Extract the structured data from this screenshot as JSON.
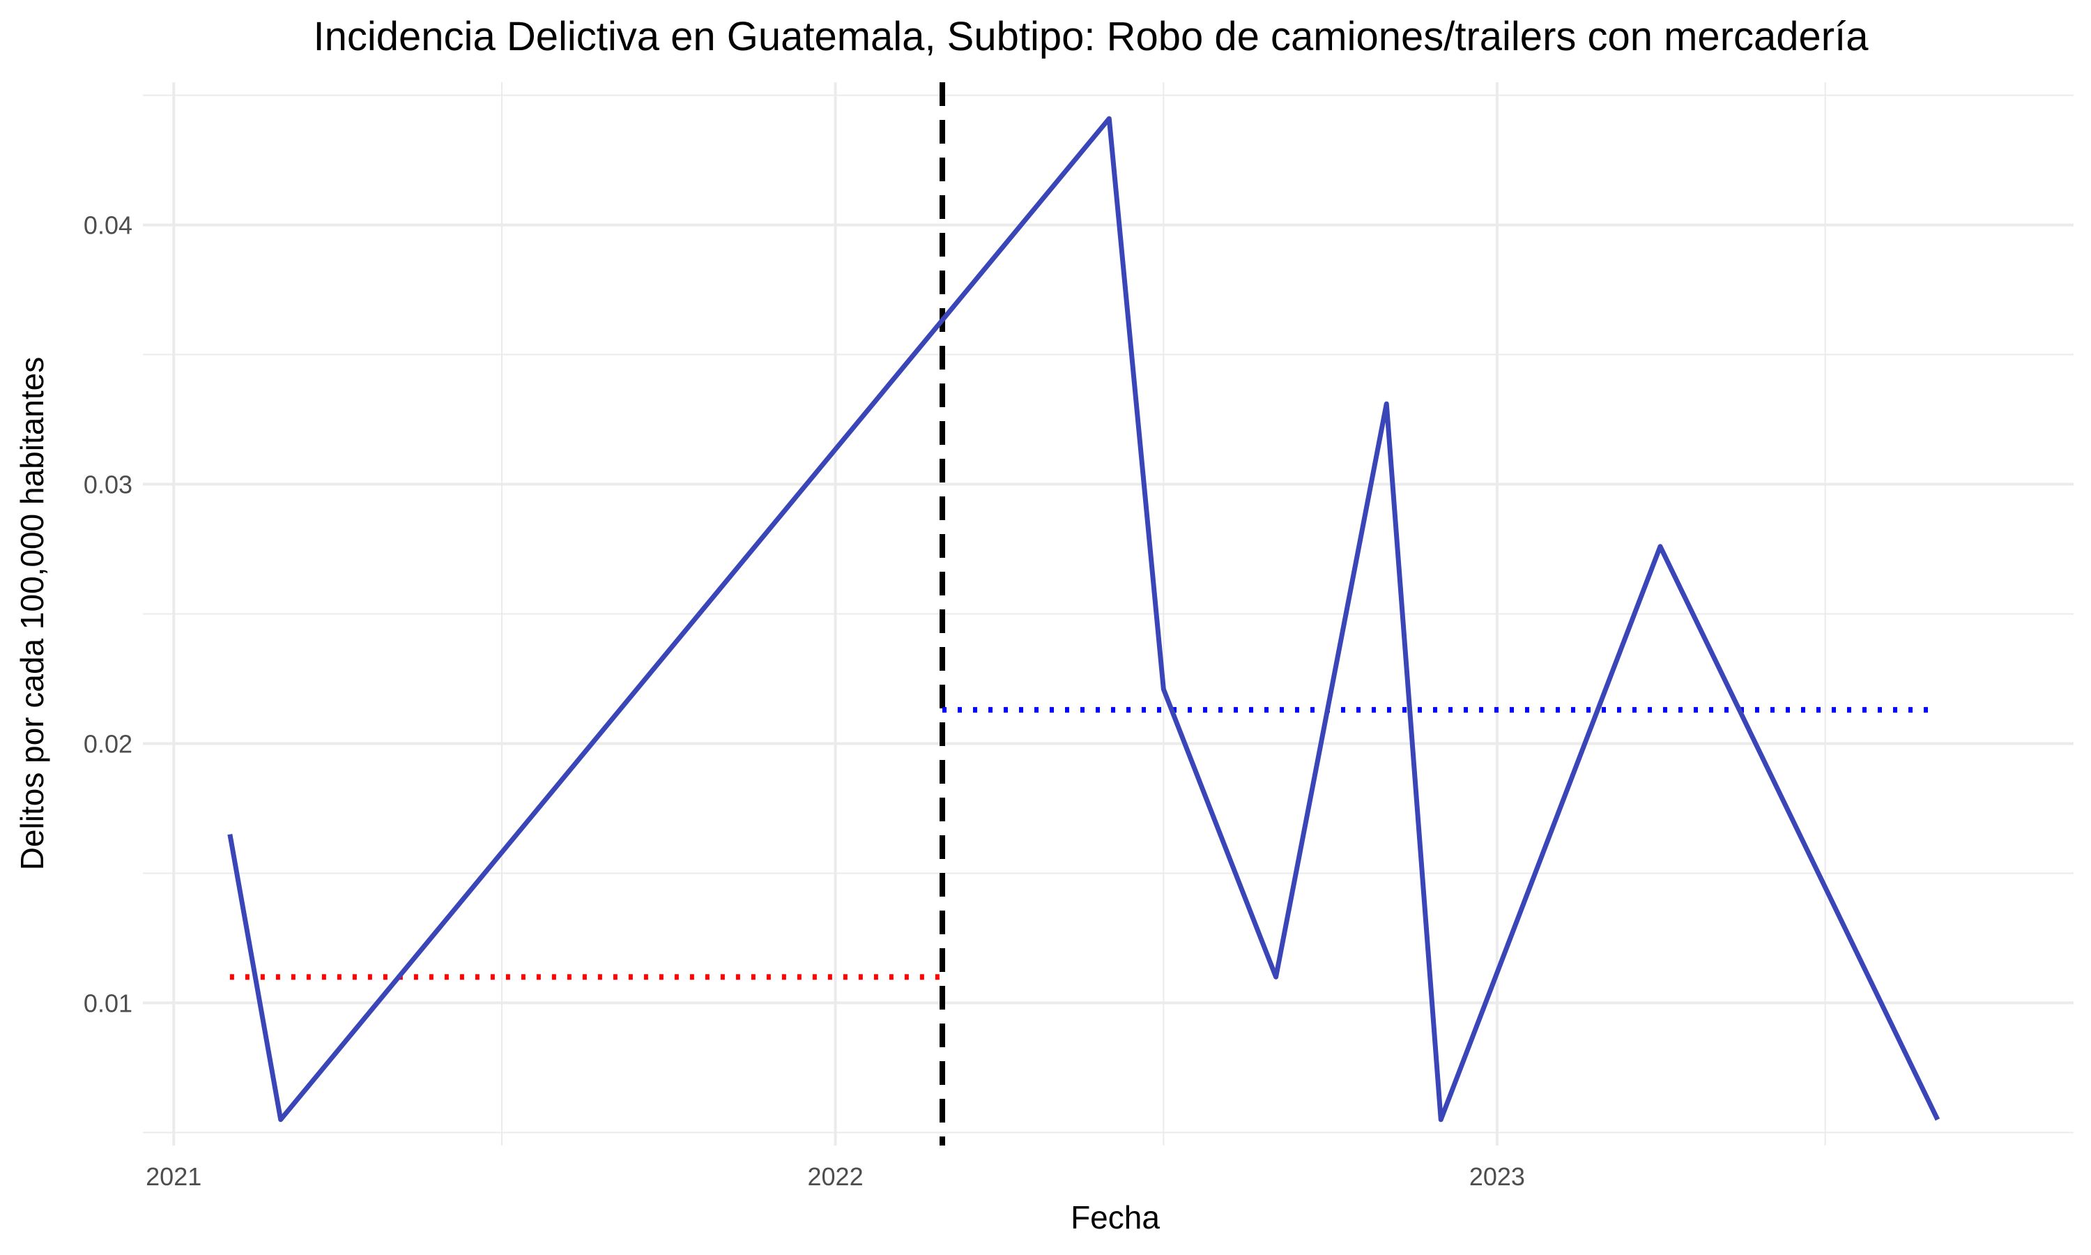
{
  "chart_data": {
    "type": "line",
    "title": "Incidencia Delictiva en Guatemala, Subtipo: Robo de camiones/trailers con mercadería",
    "xlabel": "Fecha",
    "ylabel": "Delitos por cada 100,000 habitantes",
    "x_ticks": [
      "2021",
      "2022",
      "2023"
    ],
    "y_ticks": [
      "0.01",
      "0.02",
      "0.03",
      "0.04"
    ],
    "xlim": [
      "2020-12-15",
      "2023-11-15"
    ],
    "ylim": [
      0.0045,
      0.0455
    ],
    "grid": true,
    "series": [
      {
        "color": "#3a45b8",
        "points": [
          {
            "x": "2021-02-01",
            "y": 0.0165
          },
          {
            "x": "2021-03-01",
            "y": 0.0055
          },
          {
            "x": "2022-06-01",
            "y": 0.0441
          },
          {
            "x": "2022-07-01",
            "y": 0.0221
          },
          {
            "x": "2022-09-01",
            "y": 0.011
          },
          {
            "x": "2022-11-01",
            "y": 0.0331
          },
          {
            "x": "2022-12-01",
            "y": 0.0055
          },
          {
            "x": "2023-04-01",
            "y": 0.0276
          },
          {
            "x": "2023-09-01",
            "y": 0.0055
          }
        ]
      }
    ],
    "reference_lines": [
      {
        "type": "vertical",
        "x": "2022-03-01",
        "style": "dashed",
        "color": "#000000"
      },
      {
        "type": "mean",
        "x_start": "2021-02-01",
        "x_end": "2022-03-01",
        "y": 0.011,
        "style": "dotted",
        "color": "#ff0000"
      },
      {
        "type": "mean",
        "x_start": "2022-03-01",
        "x_end": "2023-09-01",
        "y": 0.0213,
        "style": "dotted",
        "color": "#0000ff"
      }
    ]
  }
}
